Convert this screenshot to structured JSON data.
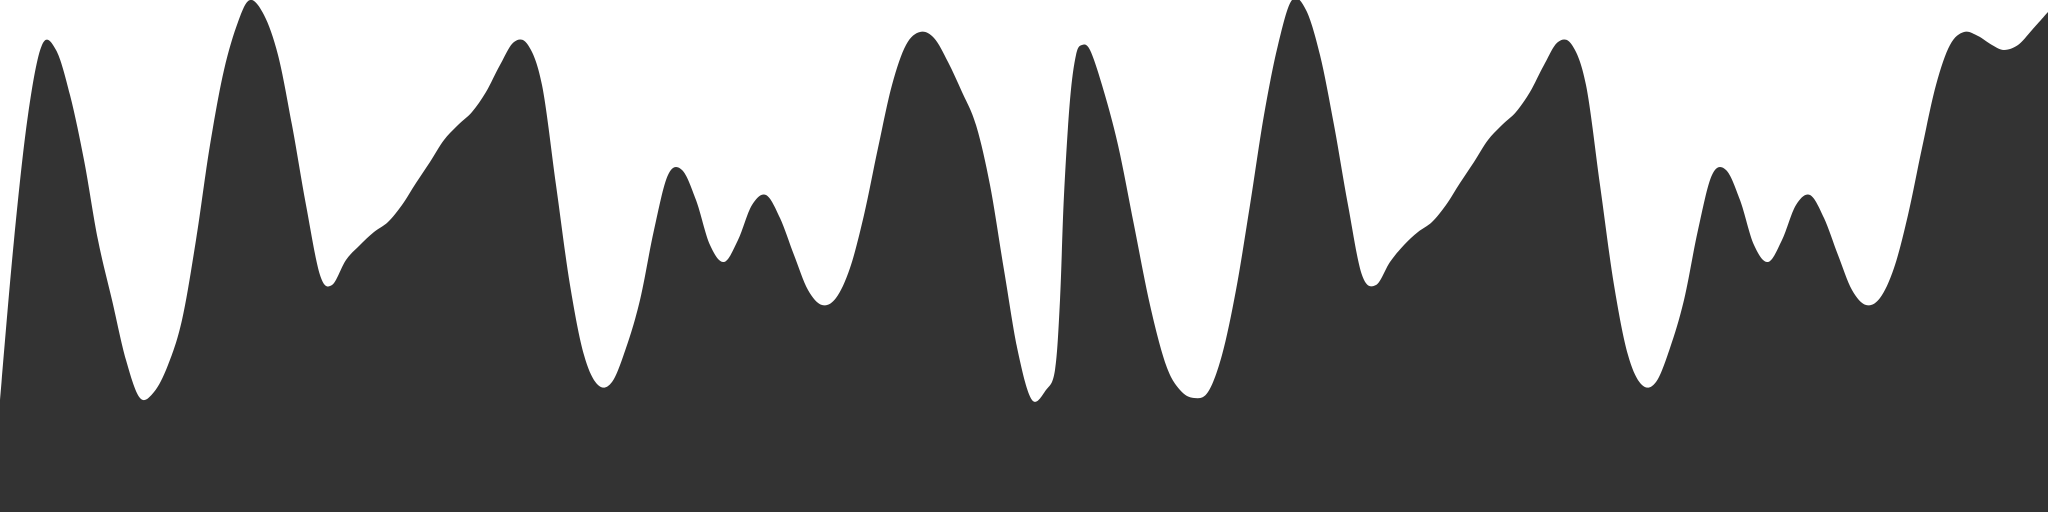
{
  "colors": {
    "background": "#ffffff",
    "silhouette": "#333333"
  }
}
